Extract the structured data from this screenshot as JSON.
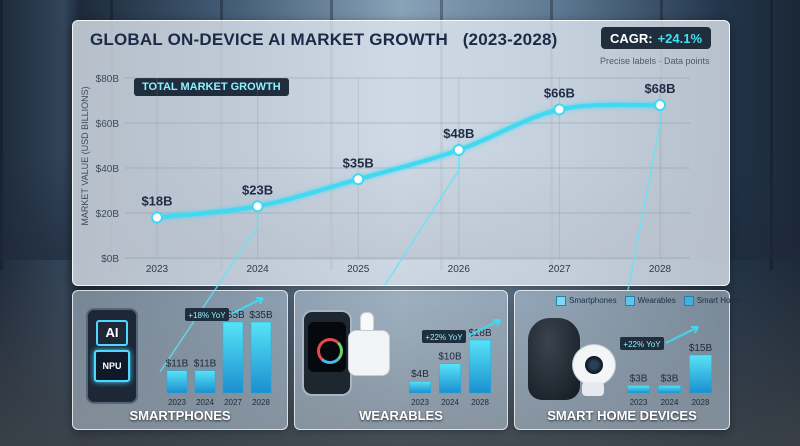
{
  "title": "GLOBAL ON-DEVICE AI MARKET GROWTH   (2023-2028)",
  "cagr": {
    "label": "CAGR:",
    "value": "+24.1%"
  },
  "subtitle": "Precise labels  ·  Data points",
  "legend_total": "TOTAL MARKET GROWTH",
  "colors": {
    "line": "#3fd9f2",
    "bar": "#35c7ea",
    "accent": "#43e0f0",
    "title": "#1b2b47"
  },
  "chart_data": [
    {
      "type": "line",
      "title": "GLOBAL ON-DEVICE AI MARKET GROWTH (2023-2028)",
      "ylabel": "MARKET VALUE (USD BILLIONS)",
      "x": [
        "2023",
        "2024",
        "2025",
        "2026",
        "2027",
        "2028"
      ],
      "series": [
        {
          "name": "TOTAL MARKET GROWTH",
          "values": [
            18,
            23,
            35,
            48,
            66,
            68
          ],
          "labels": [
            "$18B",
            "$23B",
            "$35B",
            "$48B",
            "$66B",
            "$68B"
          ]
        }
      ],
      "yticks": [
        "$0B",
        "$20B",
        "$40B",
        "$60B",
        "$80B"
      ],
      "ylim": [
        0,
        80
      ],
      "grid": true
    },
    {
      "type": "bar",
      "title": "SMARTPHONES",
      "categories": [
        "2023",
        "2024",
        "2027",
        "2028"
      ],
      "values": [
        11,
        11,
        35,
        35
      ],
      "labels": [
        "$11B",
        "$11B",
        "$35B",
        "$35B"
      ],
      "annotation": "+18% YoY"
    },
    {
      "type": "bar",
      "title": "WEARABLES",
      "categories": [
        "2023",
        "2024",
        "2028"
      ],
      "values": [
        4,
        10,
        18
      ],
      "labels": [
        "$4B",
        "$10B",
        "$18B"
      ],
      "annotation": "+22% YoY"
    },
    {
      "type": "bar",
      "title": "SMART HOME DEVICES",
      "categories": [
        "2023",
        "2024",
        "2028"
      ],
      "values": [
        3,
        3,
        15
      ],
      "labels": [
        "$3B",
        "$3B",
        "$15B"
      ],
      "annotation": "+22% YoY",
      "legend": [
        "Smartphones",
        "Wearables",
        "Smart Home"
      ]
    }
  ],
  "devices": {
    "phone_chip_top": "AI",
    "phone_chip_bottom": "NPU"
  }
}
